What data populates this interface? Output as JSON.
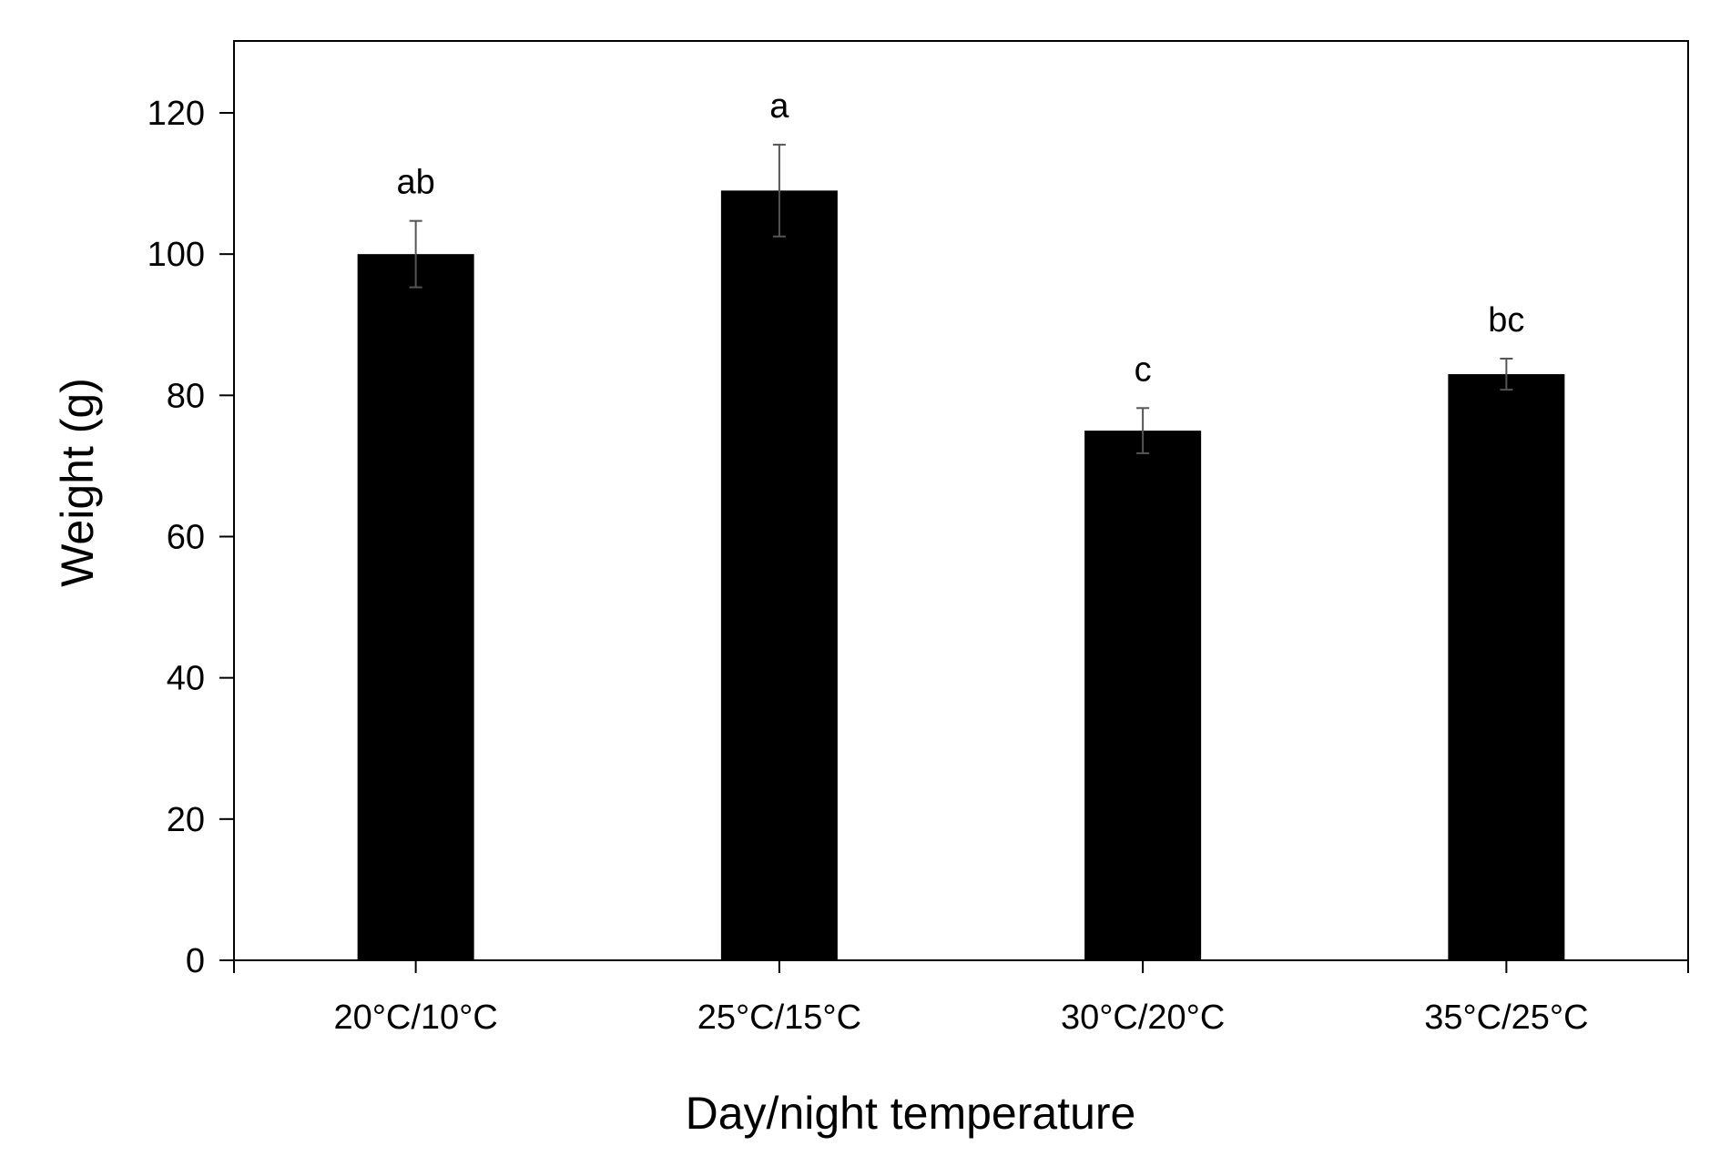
{
  "chart_data": {
    "type": "bar",
    "title": "",
    "xlabel": "Day/night temperature",
    "ylabel": "Weight (g)",
    "categories": [
      "20°C/10°C",
      "25°C/15°C",
      "30°C/20°C",
      "35°C/25°C"
    ],
    "values": [
      100,
      109,
      75,
      83
    ],
    "errors": [
      4.7,
      6.5,
      3.2,
      2.2
    ],
    "significance_labels": [
      "ab",
      "a",
      "c",
      "bc"
    ],
    "ylim": [
      0,
      130
    ],
    "yticks": [
      0,
      20,
      40,
      60,
      80,
      100,
      120
    ],
    "grid": false,
    "bar_color": "#000000"
  }
}
